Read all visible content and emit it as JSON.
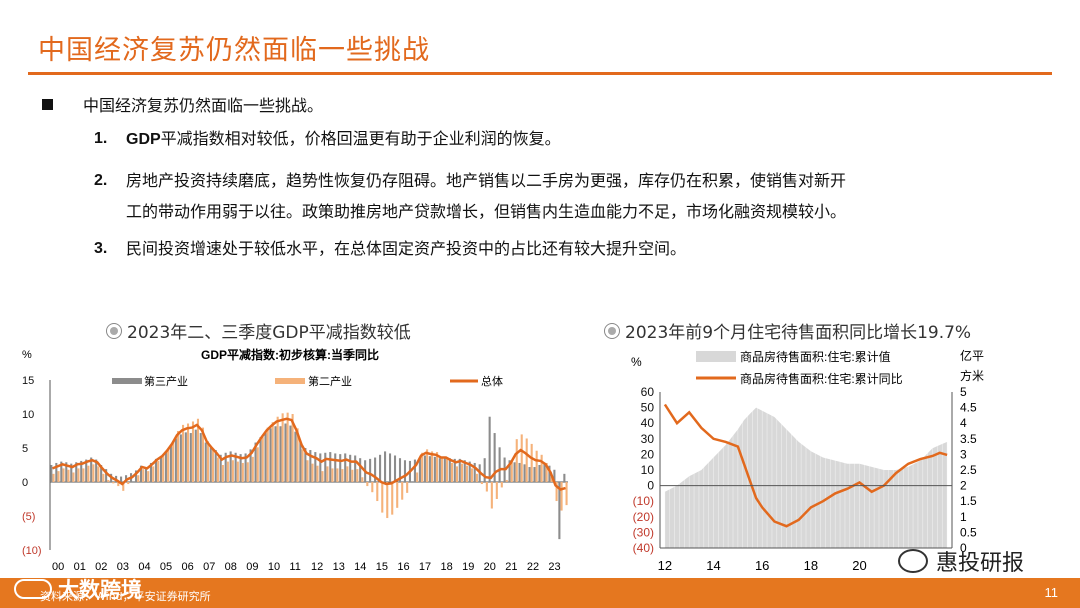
{
  "slide": {
    "title": "中国经济复苏仍然面临一些挑战",
    "bullet": "中国经济复苏仍然面临一些挑战。",
    "points": [
      {
        "num": "1.",
        "bold": "GDP",
        "text": "平减指数相对较低，价格回温更有助于企业利润的恢复。"
      },
      {
        "num": "2.",
        "line1": "房地产投资持续磨底，趋势性恢复仍存阻碍。地产销售以二手房为更强，库存仍在积累，使销售对新开",
        "line2": "工的带动作用弱于以往。政策助推房地产贷款增长，但销售内生造血能力不足，市场化融资规模较小。"
      },
      {
        "num": "3.",
        "text": "民间投资增速处于较低水平，在总体固定资产投资中的占比还有较大提升空间。"
      }
    ],
    "footer": "资料来源：Wind，平安证券研究所",
    "page": "11",
    "watermark_left": "大数跨境",
    "watermark_right": "惠投研报"
  },
  "colors": {
    "accent": "#e2691d",
    "gray_bar": "#8c8c8c",
    "orange_bar": "#f5b27a",
    "line": "#e2691d",
    "area": "#d8d8d8"
  },
  "chart_data": [
    {
      "type": "bar",
      "heading": "2023年二、三季度GDP平减指数较低",
      "title": "GDP平减指数:初步核算:当季同比",
      "unit": "%",
      "ylim": [
        -10,
        15
      ],
      "yticks": [
        "15",
        "10",
        "5",
        "0",
        "(5)",
        "(10)"
      ],
      "x_ticks": [
        "00",
        "01",
        "02",
        "03",
        "04",
        "05",
        "06",
        "07",
        "08",
        "09",
        "10",
        "11",
        "12",
        "13",
        "14",
        "15",
        "16",
        "17",
        "18",
        "19",
        "20",
        "21",
        "22",
        "23"
      ],
      "legend": [
        "第三产业",
        "第二产业",
        "总体"
      ],
      "series": [
        {
          "name": "总体",
          "values": [
            2,
            2.3,
            2.6,
            2.4,
            2.2,
            2.6,
            2.7,
            3.0,
            3.2,
            2.9,
            2.0,
            1.2,
            0.6,
            0.2,
            -0.3,
            0.4,
            0.7,
            1.4,
            2.2,
            2.0,
            2.6,
            3.3,
            3.8,
            4.6,
            5.6,
            6.9,
            7.6,
            7.9,
            8.0,
            8.4,
            7.6,
            5.9,
            5.0,
            4.2,
            3.3,
            3.7,
            3.9,
            3.7,
            3.5,
            3.6,
            4.3,
            5.5,
            6.6,
            7.6,
            8.3,
            8.9,
            9.1,
            9.3,
            9.1,
            7.6,
            5.5,
            4.2,
            3.8,
            3.5,
            3.0,
            3.4,
            3.3,
            3.2,
            3.1,
            3.3,
            3.0,
            3.0,
            2.2,
            1.4,
            1.1,
            0.6,
            0.0,
            -0.3,
            -0.2,
            0.2,
            0.6,
            1.0,
            1.7,
            2.5,
            3.9,
            4.3,
            4.1,
            4.0,
            3.6,
            3.6,
            3.2,
            2.9,
            3.1,
            2.8,
            2.5,
            2.0,
            1.3,
            0.7,
            0.6,
            1.5,
            1.9,
            1.9,
            2.8,
            4.1,
            4.7,
            4.2,
            3.6,
            3.2,
            3.1,
            2.6,
            1.4,
            -0.5,
            -1.1,
            -0.9
          ]
        },
        {
          "name": "第三产业",
          "values": [
            2.5,
            2.8,
            3.0,
            2.9,
            2.7,
            2.9,
            3.1,
            3.3,
            3.6,
            3.3,
            2.5,
            1.9,
            1.2,
            0.9,
            0.8,
            1.0,
            1.3,
            1.7,
            2.4,
            2.2,
            2.8,
            3.4,
            3.7,
            4.4,
            5.3,
            6.4,
            7.0,
            7.3,
            7.2,
            7.7,
            7.2,
            5.8,
            5.3,
            4.7,
            4.0,
            4.3,
            4.5,
            4.3,
            4.1,
            4.2,
            4.8,
            5.8,
            6.6,
            7.2,
            7.9,
            8.2,
            8.2,
            8.6,
            8.3,
            7.4,
            6.0,
            5.0,
            4.7,
            4.4,
            4.2,
            4.3,
            4.4,
            4.2,
            4.1,
            4.2,
            4.0,
            3.9,
            3.5,
            3.2,
            3.4,
            3.6,
            4.0,
            4.5,
            4.2,
            3.9,
            3.5,
            3.2,
            3.1,
            3.3,
            3.6,
            3.9,
            3.8,
            3.7,
            3.5,
            3.6,
            3.5,
            3.4,
            3.4,
            3.2,
            3.0,
            2.8,
            2.6,
            3.5,
            9.6,
            7.2,
            5.1,
            3.6,
            3.2,
            2.9,
            2.8,
            2.6,
            2.2,
            2.2,
            2.5,
            2.7,
            2.4,
            1.8,
            -8.4,
            1.2
          ]
        },
        {
          "name": "第二产业",
          "values": [
            1.2,
            1.6,
            2.0,
            1.8,
            1.4,
            2.0,
            2.0,
            2.4,
            2.6,
            2.3,
            1.2,
            0.3,
            -0.2,
            -0.6,
            -1.3,
            -0.3,
            0.0,
            1.0,
            1.9,
            1.6,
            2.3,
            3.1,
            3.8,
            4.8,
            6.0,
            7.5,
            8.4,
            8.6,
            8.9,
            9.3,
            8.0,
            6.0,
            4.7,
            3.6,
            2.5,
            3.0,
            3.2,
            3.0,
            2.8,
            2.9,
            3.7,
            5.1,
            6.6,
            8.0,
            8.8,
            9.6,
            10.1,
            10.2,
            10.0,
            7.9,
            4.8,
            3.2,
            2.7,
            2.4,
            1.6,
            2.3,
            2.0,
            2.0,
            1.9,
            2.3,
            1.8,
            1.9,
            0.7,
            -0.6,
            -1.5,
            -2.8,
            -4.5,
            -5.3,
            -4.8,
            -3.8,
            -2.6,
            -1.6,
            0.0,
            1.4,
            4.3,
            4.8,
            4.5,
            4.4,
            3.7,
            3.6,
            2.8,
            2.3,
            2.7,
            2.4,
            2.0,
            1.2,
            -0.3,
            -1.4,
            -3.9,
            -2.5,
            -0.8,
            0.3,
            3.1,
            6.3,
            7.0,
            6.4,
            5.6,
            4.6,
            4.0,
            2.8,
            0.8,
            -2.8,
            -4.2,
            -3.4
          ]
        }
      ]
    },
    {
      "type": "area",
      "heading": "2023年前9个月住宅待售面积同比增长19.7%",
      "unit_left": "%",
      "unit_right": "亿平方米",
      "y_left_ticks": [
        "60",
        "50",
        "40",
        "30",
        "20",
        "10",
        "0",
        "(10)",
        "(20)",
        "(30)",
        "(40)"
      ],
      "y_right_ticks": [
        "5",
        "4.5",
        "4",
        "3.5",
        "3",
        "2.5",
        "2",
        "1.5",
        "1",
        "0.5",
        "0"
      ],
      "ylim_left": [
        -40,
        60
      ],
      "ylim_right": [
        0,
        5
      ],
      "x_ticks": [
        "12",
        "14",
        "16",
        "18",
        "20"
      ],
      "legend": [
        "商品房待售面积:住宅:累计值",
        "商品房待售面积:住宅:累计同比"
      ],
      "x": [
        2012,
        2012.5,
        2013,
        2013.5,
        2014,
        2014.5,
        2015,
        2015.25,
        2015.5,
        2015.75,
        2016,
        2016.5,
        2017,
        2017.5,
        2018,
        2018.5,
        2019,
        2019.5,
        2020,
        2020.5,
        2021,
        2021.5,
        2022,
        2022.5,
        2023,
        2023.3,
        2023.6
      ],
      "stock": [
        1.8,
        2.0,
        2.3,
        2.5,
        2.9,
        3.3,
        3.8,
        4.1,
        4.3,
        4.5,
        4.4,
        4.2,
        3.8,
        3.4,
        3.1,
        2.9,
        2.8,
        2.7,
        2.7,
        2.6,
        2.5,
        2.5,
        2.6,
        2.8,
        3.2,
        3.3,
        3.4
      ],
      "yoy": [
        52,
        40,
        47,
        37,
        30,
        28,
        25,
        14,
        3,
        -8,
        -14,
        -23,
        -26,
        -22,
        -14,
        -10,
        -5,
        -2,
        2,
        -4,
        0,
        8,
        14,
        17,
        19,
        21,
        19.7
      ]
    }
  ]
}
